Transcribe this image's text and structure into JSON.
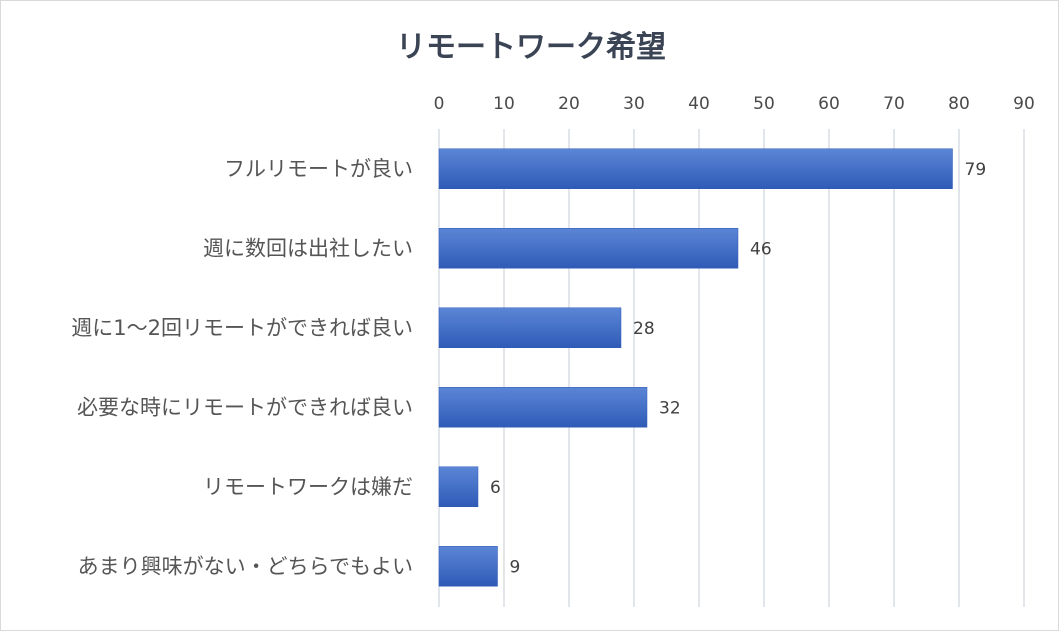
{
  "chart_data": {
    "type": "bar",
    "orientation": "horizontal",
    "title": "リモートワーク希望",
    "categories": [
      "フルリモートが良い",
      "週に数回は出社したい",
      "週に1〜2回リモートができれば良い",
      "必要な時にリモートができれば良い",
      "リモートワークは嫌だ",
      "あまり興味がない・どちらでもよい"
    ],
    "values": [
      79,
      46,
      28,
      32,
      6,
      9
    ],
    "xlim": [
      0,
      90
    ],
    "xticks": [
      0,
      10,
      20,
      30,
      40,
      50,
      60,
      70,
      80,
      90
    ],
    "x_axis_position": "top",
    "grid": true,
    "data_labels": true,
    "legend": "none",
    "bar_color": "#4472c4"
  }
}
